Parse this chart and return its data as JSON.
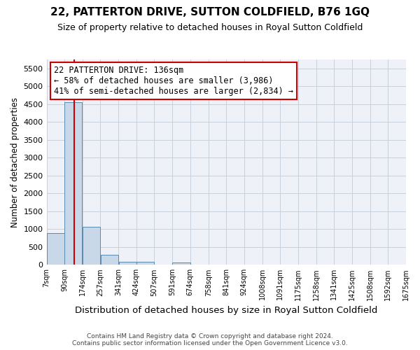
{
  "title": "22, PATTERTON DRIVE, SUTTON COLDFIELD, B76 1GQ",
  "subtitle": "Size of property relative to detached houses in Royal Sutton Coldfield",
  "xlabel": "Distribution of detached houses by size in Royal Sutton Coldfield",
  "ylabel": "Number of detached properties",
  "footer_line1": "Contains HM Land Registry data © Crown copyright and database right 2024.",
  "footer_line2": "Contains public sector information licensed under the Open Government Licence v3.0.",
  "annotation_title": "22 PATTERTON DRIVE: 136sqm",
  "annotation_line2": "← 58% of detached houses are smaller (3,986)",
  "annotation_line3": "41% of semi-detached houses are larger (2,834) →",
  "property_size": 136,
  "bin_edges": [
    7,
    90,
    174,
    257,
    341,
    424,
    507,
    591,
    674,
    758,
    841,
    924,
    1008,
    1091,
    1175,
    1258,
    1341,
    1425,
    1508,
    1592,
    1675
  ],
  "bar_heights": [
    880,
    4560,
    1060,
    290,
    90,
    80,
    0,
    60,
    0,
    0,
    0,
    0,
    0,
    0,
    0,
    0,
    0,
    0,
    0,
    0
  ],
  "bar_color": "#c8d8e8",
  "bar_edge_color": "#5a8ab0",
  "vline_color": "#cc0000",
  "annotation_box_edge_color": "#cc0000",
  "annotation_box_fill": "#ffffff",
  "grid_color": "#c8d0dc",
  "bg_color": "#eef2f8",
  "ylim": [
    0,
    5750
  ],
  "yticks": [
    0,
    500,
    1000,
    1500,
    2000,
    2500,
    3000,
    3500,
    4000,
    4500,
    5000,
    5500
  ]
}
